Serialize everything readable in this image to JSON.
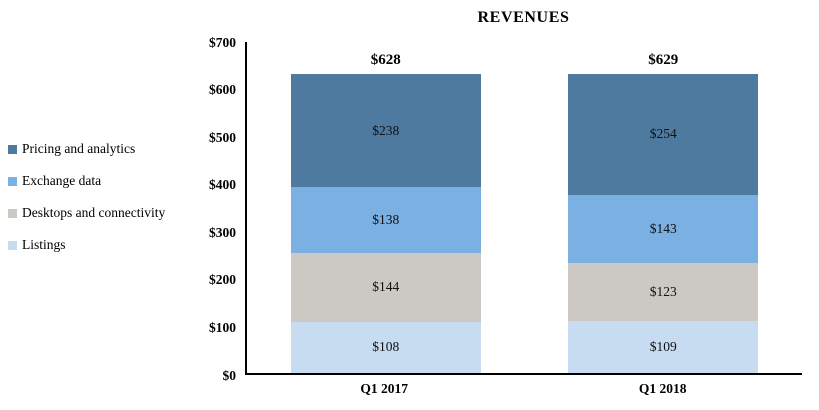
{
  "chart_data": {
    "type": "bar",
    "subtype": "stacked",
    "title": "REVENUES",
    "categories": [
      "Q1 2017",
      "Q1 2018"
    ],
    "series": [
      {
        "name": "Listings",
        "color": "#c7dcf1",
        "values": [
          108,
          109
        ]
      },
      {
        "name": "Desktops and connectivity",
        "color": "#ccc9c4",
        "values": [
          144,
          123
        ]
      },
      {
        "name": "Exchange data",
        "color": "#7ab0e2",
        "values": [
          138,
          143
        ]
      },
      {
        "name": "Pricing and analytics",
        "color": "#4f7aa0",
        "values": [
          238,
          254
        ]
      }
    ],
    "segment_labels": [
      [
        "$108",
        "$144",
        "$138",
        "$238"
      ],
      [
        "$109",
        "$123",
        "$143",
        "$254"
      ]
    ],
    "totals": [
      "$628",
      "$629"
    ],
    "ylim": [
      0,
      700
    ],
    "ytick_step": 100,
    "ytick_labels": [
      "$0",
      "$100",
      "$200",
      "$300",
      "$400",
      "$500",
      "$600",
      "$700"
    ],
    "grid": false,
    "legend_position": "left",
    "legend": [
      {
        "label": "Pricing and analytics",
        "color": "#4f7aa0"
      },
      {
        "label": "Exchange data",
        "color": "#7ab0e2"
      },
      {
        "label": "Desktops and connectivity",
        "color": "#ccc9c4"
      },
      {
        "label": "Listings",
        "color": "#c7dcf1"
      }
    ]
  }
}
